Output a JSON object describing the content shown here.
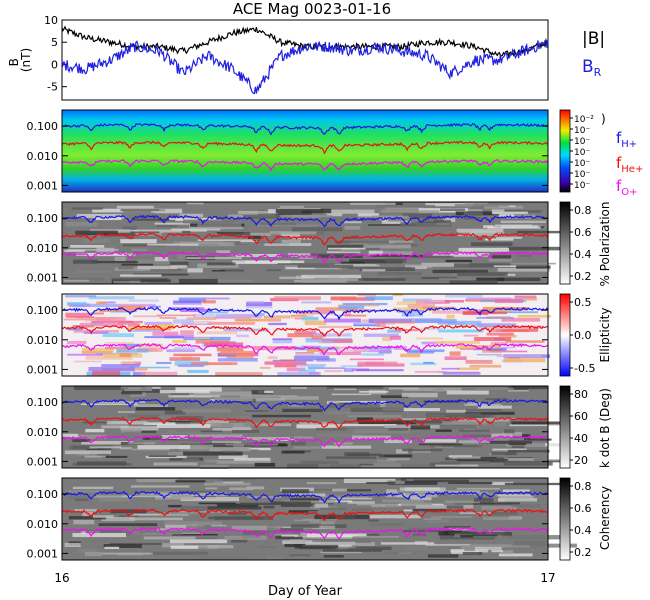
{
  "title": "ACE Mag 0023-01-16",
  "xlabel": "Day of Year",
  "x_ticks": [
    "16",
    "17"
  ],
  "colors": {
    "B_total": "#000000",
    "B_R": "#2020e0",
    "f_H": "#1818e8",
    "f_He": "#ee1010",
    "f_O": "#ee10ee"
  },
  "chart_data": [
    {
      "type": "line",
      "panel": "magnetic-field",
      "ylabel": "B (nT)",
      "ylim": [
        -8,
        10
      ],
      "yticks": [
        "10",
        "5",
        "0",
        "-5"
      ],
      "ytick_values": [
        10,
        5,
        0,
        -5
      ],
      "x": [
        16.0,
        16.05,
        16.1,
        16.15,
        16.2,
        16.25,
        16.3,
        16.35,
        16.4,
        16.45,
        16.5,
        16.55,
        16.6,
        16.65,
        16.7,
        16.75,
        16.8,
        16.85,
        16.9,
        16.95,
        17.0
      ],
      "series": [
        {
          "name": "|B|",
          "values": [
            8,
            6,
            5,
            4,
            4,
            3,
            5,
            7,
            8,
            5,
            4,
            4,
            4,
            4,
            4,
            5,
            5,
            4,
            2,
            3,
            5
          ]
        },
        {
          "name": "B",
          "subscript": "R",
          "values": [
            0,
            -1,
            1,
            4,
            3,
            -2,
            2,
            -1,
            -6,
            2,
            4,
            4,
            3,
            4,
            3,
            2,
            -2,
            1,
            1,
            3,
            5
          ]
        }
      ]
    },
    {
      "type": "heatmap",
      "panel": "power-spectrum",
      "ylabel": "",
      "yticks": [
        "0.100",
        "0.010",
        "0.001"
      ],
      "colorbar_ticks": [
        "10⁻²",
        "10⁻",
        "10⁻",
        "10⁻",
        "10⁻",
        "10⁻",
        "10⁻"
      ],
      "cyclotron_lines": [
        {
          "name": "f",
          "subscript": "H+",
          "mean": 0.1
        },
        {
          "name": "f",
          "subscript": "He+",
          "mean": 0.025
        },
        {
          "name": "f",
          "subscript": "O+",
          "mean": 0.006
        }
      ]
    },
    {
      "type": "heatmap",
      "panel": "polarization",
      "ylabel": "",
      "yticks": [
        "0.100",
        "0.010",
        "0.001"
      ],
      "colorbar_label": "% Polarization",
      "colorbar_ticks": [
        "0.8",
        "0.6",
        "0.4",
        "0.2"
      ],
      "colorbar_range": [
        0,
        1
      ]
    },
    {
      "type": "heatmap",
      "panel": "ellipticity",
      "ylabel": "",
      "yticks": [
        "0.100",
        "0.010",
        "0.001"
      ],
      "colorbar_label": "Ellipticity",
      "colorbar_ticks": [
        "0.5",
        "0.0",
        "-0.5"
      ],
      "colorbar_range": [
        -1,
        1
      ]
    },
    {
      "type": "heatmap",
      "panel": "k-dot-b",
      "ylabel": "",
      "yticks": [
        "0.100",
        "0.010",
        "0.001"
      ],
      "colorbar_label": "k dot B (Deg)",
      "colorbar_ticks": [
        "80",
        "60",
        "40",
        "20"
      ],
      "colorbar_range": [
        0,
        90
      ]
    },
    {
      "type": "heatmap",
      "panel": "coherency",
      "ylabel": "",
      "yticks": [
        "0.100",
        "0.010",
        "0.001"
      ],
      "colorbar_label": "Coherency",
      "colorbar_ticks": [
        "0.8",
        "0.6",
        "0.4",
        "0.2"
      ],
      "colorbar_range": [
        0,
        1
      ]
    }
  ]
}
